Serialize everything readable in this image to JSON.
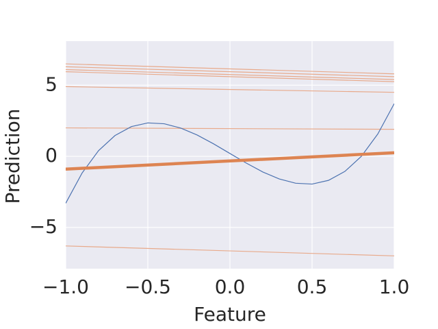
{
  "chart_data": {
    "type": "line",
    "xlabel": "Feature",
    "ylabel": "Prediction",
    "xlim": [
      -1,
      1
    ],
    "ylim": [
      -7.9,
      8.1
    ],
    "xticks": [
      {
        "value": -1,
        "label": "−1.0"
      },
      {
        "value": -0.5,
        "label": "−0.5"
      },
      {
        "value": 0,
        "label": "0.0"
      },
      {
        "value": 0.5,
        "label": "0.5"
      },
      {
        "value": 1,
        "label": "1.0"
      }
    ],
    "yticks": [
      {
        "value": -5,
        "label": "−5"
      },
      0,
      5
    ],
    "grid": true,
    "series": [
      {
        "color": "#e8a98a",
        "linewidth": 1.2,
        "x": [
          -1,
          1
        ],
        "values": [
          6.5,
          5.8
        ]
      },
      {
        "color": "#e8a98a",
        "linewidth": 1.2,
        "x": [
          -1,
          1
        ],
        "values": [
          6.3,
          5.6
        ]
      },
      {
        "color": "#e8a98a",
        "linewidth": 1.2,
        "x": [
          -1,
          1
        ],
        "values": [
          6.1,
          5.4
        ]
      },
      {
        "color": "#e8a98a",
        "linewidth": 1.2,
        "x": [
          -1,
          1
        ],
        "values": [
          5.95,
          5.25
        ]
      },
      {
        "color": "#e8a98a",
        "linewidth": 1.2,
        "x": [
          -1,
          1
        ],
        "values": [
          4.9,
          4.5
        ]
      },
      {
        "color": "#e8a98a",
        "linewidth": 1.2,
        "x": [
          -1,
          1
        ],
        "values": [
          2.0,
          1.9
        ]
      },
      {
        "color": "#e8a98a",
        "linewidth": 1.2,
        "x": [
          -1,
          1
        ],
        "values": [
          -6.3,
          -7.0
        ]
      },
      {
        "color": "#4c72b0",
        "linewidth": 1.2,
        "x": [
          -1,
          -0.9,
          -0.8,
          -0.7,
          -0.6,
          -0.5,
          -0.4,
          -0.3,
          -0.2,
          -0.1,
          0,
          0.1,
          0.2,
          0.3,
          0.4,
          0.5,
          0.6,
          0.7,
          0.8,
          0.9,
          1
        ],
        "values": [
          -3.3,
          -1.17,
          0.4,
          1.46,
          2.09,
          2.35,
          2.29,
          1.99,
          1.5,
          0.88,
          0.2,
          -0.48,
          -1.1,
          -1.59,
          -1.89,
          -1.95,
          -1.69,
          -1.06,
          0.0,
          1.57,
          3.7
        ]
      },
      {
        "color": "#dd8452",
        "linewidth": 4.5,
        "x": [
          -1,
          1
        ],
        "values": [
          -0.9,
          0.25
        ]
      }
    ]
  }
}
